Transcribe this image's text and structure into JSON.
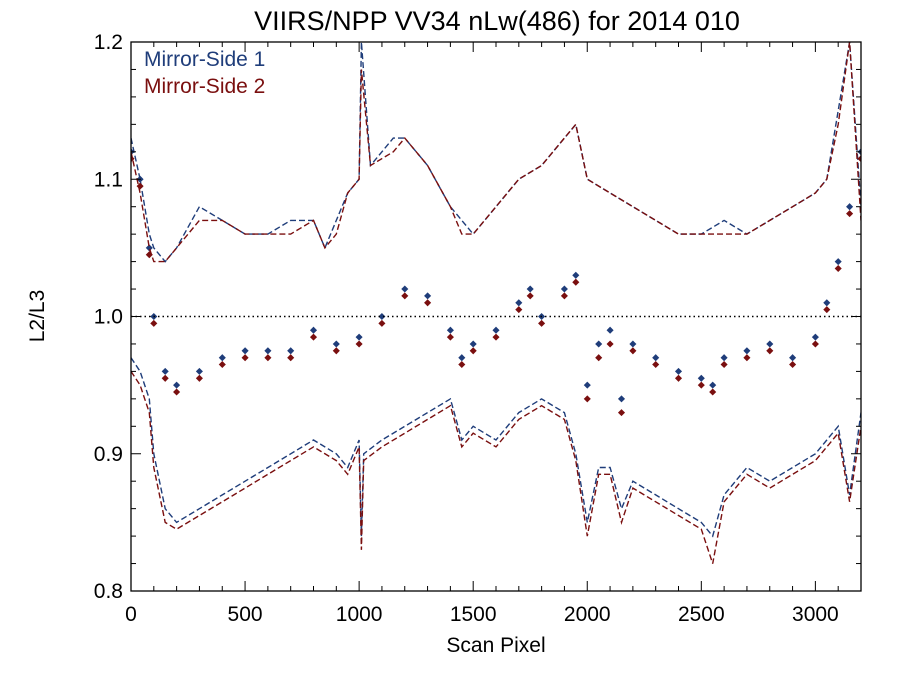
{
  "chart_data": {
    "type": "scatter",
    "title": "VIIRS/NPP VV34 nLw(486) for 2014 010",
    "xlabel": "Scan Pixel",
    "ylabel": "L2/L3",
    "xlim": [
      0,
      3200
    ],
    "ylim": [
      0.8,
      1.2
    ],
    "xticks": [
      0,
      500,
      1000,
      1500,
      2000,
      2500,
      3000
    ],
    "xtick_labels": [
      "0",
      "500",
      "1000",
      "1500",
      "2000",
      "2500",
      "3000"
    ],
    "yticks": [
      0.8,
      0.9,
      1.0,
      1.1,
      1.2
    ],
    "ytick_labels": [
      "0.8",
      "0.9",
      "1.0",
      "1.1",
      "1.2"
    ],
    "reference_line": 1.0,
    "legend_position": "top-left",
    "colors": {
      "ms1": "#1f3d7a",
      "ms2": "#7a0f0f"
    },
    "series": [
      {
        "name": "Mirror-Side 1",
        "color": "#1f3d7a",
        "mean": {
          "x": [
            0,
            40,
            80,
            100,
            150,
            200,
            300,
            400,
            500,
            600,
            700,
            800,
            900,
            1000,
            1100,
            1200,
            1300,
            1400,
            1450,
            1500,
            1600,
            1700,
            1750,
            1800,
            1900,
            1950,
            2000,
            2050,
            2100,
            2150,
            2200,
            2300,
            2400,
            2500,
            2550,
            2600,
            2700,
            2800,
            2900,
            3000,
            3050,
            3100,
            3150,
            3200
          ],
          "y": [
            1.12,
            1.1,
            1.05,
            1.0,
            0.96,
            0.95,
            0.96,
            0.97,
            0.975,
            0.975,
            0.975,
            0.99,
            0.98,
            0.985,
            1.0,
            1.02,
            1.015,
            0.99,
            0.97,
            0.98,
            0.99,
            1.01,
            1.02,
            1.0,
            1.02,
            1.03,
            0.95,
            0.98,
            0.99,
            0.94,
            0.98,
            0.97,
            0.96,
            0.955,
            0.95,
            0.97,
            0.975,
            0.98,
            0.97,
            0.985,
            1.01,
            1.04,
            1.08,
            1.12
          ]
        },
        "upper": {
          "x": [
            0,
            40,
            80,
            100,
            150,
            200,
            300,
            400,
            500,
            600,
            700,
            800,
            850,
            900,
            950,
            1000,
            1010,
            1050,
            1150,
            1200,
            1300,
            1400,
            1450,
            1500,
            1600,
            1700,
            1800,
            1900,
            1950,
            2000,
            2100,
            2200,
            2300,
            2400,
            2500,
            2600,
            2700,
            2800,
            2900,
            3000,
            3050,
            3100,
            3150,
            3200
          ],
          "y": [
            1.13,
            1.1,
            1.06,
            1.05,
            1.04,
            1.05,
            1.08,
            1.07,
            1.06,
            1.06,
            1.07,
            1.07,
            1.05,
            1.07,
            1.09,
            1.1,
            1.2,
            1.11,
            1.13,
            1.13,
            1.11,
            1.08,
            1.07,
            1.06,
            1.08,
            1.1,
            1.11,
            1.13,
            1.14,
            1.1,
            1.09,
            1.08,
            1.07,
            1.06,
            1.06,
            1.07,
            1.06,
            1.07,
            1.08,
            1.09,
            1.1,
            1.15,
            1.2,
            1.08
          ]
        },
        "lower": {
          "x": [
            0,
            40,
            80,
            100,
            150,
            200,
            300,
            400,
            500,
            600,
            700,
            800,
            900,
            950,
            1000,
            1010,
            1020,
            1100,
            1200,
            1300,
            1400,
            1450,
            1500,
            1600,
            1700,
            1800,
            1900,
            1950,
            2000,
            2050,
            2100,
            2150,
            2200,
            2300,
            2400,
            2500,
            2550,
            2600,
            2700,
            2800,
            2900,
            3000,
            3050,
            3100,
            3150,
            3200
          ],
          "y": [
            0.97,
            0.96,
            0.94,
            0.9,
            0.86,
            0.85,
            0.86,
            0.87,
            0.88,
            0.89,
            0.9,
            0.91,
            0.9,
            0.89,
            0.91,
            0.84,
            0.9,
            0.91,
            0.92,
            0.93,
            0.94,
            0.91,
            0.92,
            0.91,
            0.93,
            0.94,
            0.93,
            0.9,
            0.85,
            0.89,
            0.89,
            0.86,
            0.88,
            0.87,
            0.86,
            0.85,
            0.84,
            0.87,
            0.89,
            0.88,
            0.89,
            0.9,
            0.91,
            0.92,
            0.87,
            0.93
          ]
        }
      },
      {
        "name": "Mirror-Side 2",
        "color": "#7a0f0f",
        "mean": {
          "x": [
            0,
            40,
            80,
            100,
            150,
            200,
            300,
            400,
            500,
            600,
            700,
            800,
            900,
            1000,
            1100,
            1200,
            1300,
            1400,
            1450,
            1500,
            1600,
            1700,
            1750,
            1800,
            1900,
            1950,
            2000,
            2050,
            2100,
            2150,
            2200,
            2300,
            2400,
            2500,
            2550,
            2600,
            2700,
            2800,
            2900,
            3000,
            3050,
            3100,
            3150,
            3200
          ],
          "y": [
            1.115,
            1.095,
            1.045,
            0.995,
            0.955,
            0.945,
            0.955,
            0.965,
            0.97,
            0.97,
            0.97,
            0.985,
            0.975,
            0.98,
            0.995,
            1.015,
            1.01,
            0.985,
            0.965,
            0.975,
            0.985,
            1.005,
            1.015,
            0.995,
            1.015,
            1.025,
            0.94,
            0.97,
            0.98,
            0.93,
            0.975,
            0.965,
            0.955,
            0.95,
            0.945,
            0.965,
            0.97,
            0.975,
            0.965,
            0.98,
            1.005,
            1.035,
            1.075,
            1.115
          ]
        },
        "upper": {
          "x": [
            0,
            40,
            80,
            100,
            150,
            200,
            300,
            400,
            500,
            600,
            700,
            800,
            850,
            900,
            950,
            1000,
            1010,
            1050,
            1150,
            1200,
            1300,
            1400,
            1450,
            1500,
            1600,
            1700,
            1800,
            1900,
            1950,
            2000,
            2100,
            2200,
            2300,
            2400,
            2500,
            2600,
            2700,
            2800,
            2900,
            3000,
            3050,
            3100,
            3150,
            3200
          ],
          "y": [
            1.12,
            1.09,
            1.05,
            1.04,
            1.04,
            1.05,
            1.07,
            1.07,
            1.06,
            1.06,
            1.06,
            1.07,
            1.05,
            1.06,
            1.09,
            1.1,
            1.18,
            1.11,
            1.12,
            1.13,
            1.11,
            1.08,
            1.06,
            1.06,
            1.08,
            1.1,
            1.11,
            1.13,
            1.14,
            1.1,
            1.09,
            1.08,
            1.07,
            1.06,
            1.06,
            1.06,
            1.06,
            1.07,
            1.08,
            1.09,
            1.1,
            1.14,
            1.2,
            1.07
          ]
        },
        "lower": {
          "x": [
            0,
            40,
            80,
            100,
            150,
            200,
            300,
            400,
            500,
            600,
            700,
            800,
            900,
            950,
            1000,
            1010,
            1020,
            1100,
            1200,
            1300,
            1400,
            1450,
            1500,
            1600,
            1700,
            1800,
            1900,
            1950,
            2000,
            2050,
            2100,
            2150,
            2200,
            2300,
            2400,
            2500,
            2550,
            2600,
            2700,
            2800,
            2900,
            3000,
            3050,
            3100,
            3150,
            3200
          ],
          "y": [
            0.96,
            0.95,
            0.93,
            0.89,
            0.85,
            0.845,
            0.855,
            0.865,
            0.875,
            0.885,
            0.895,
            0.905,
            0.895,
            0.885,
            0.905,
            0.83,
            0.895,
            0.905,
            0.915,
            0.925,
            0.935,
            0.905,
            0.915,
            0.905,
            0.925,
            0.935,
            0.925,
            0.895,
            0.84,
            0.885,
            0.885,
            0.85,
            0.875,
            0.865,
            0.855,
            0.845,
            0.82,
            0.865,
            0.885,
            0.875,
            0.885,
            0.895,
            0.905,
            0.915,
            0.865,
            0.92
          ]
        }
      }
    ]
  }
}
